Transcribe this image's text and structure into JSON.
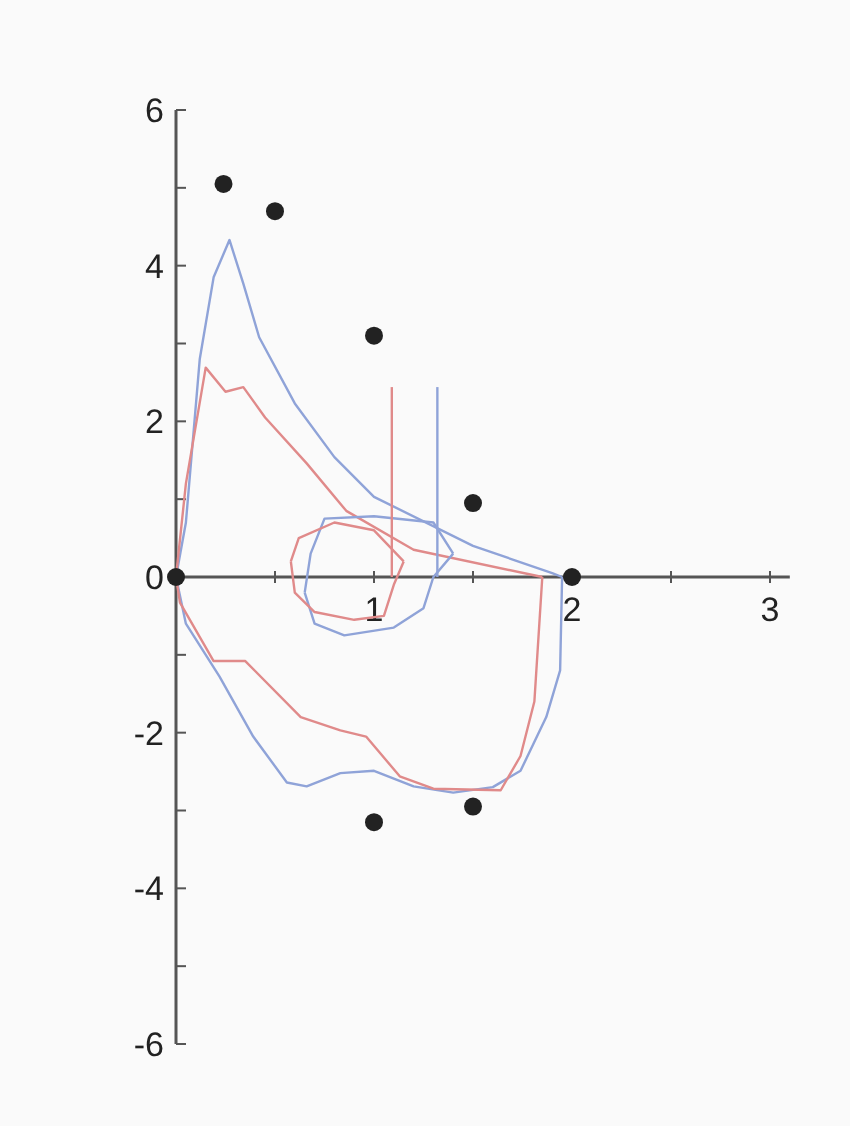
{
  "chart_data": {
    "type": "line",
    "xlim": [
      0,
      3.1
    ],
    "ylim": [
      -6,
      6
    ],
    "xticks": [
      {
        "value": 0.5,
        "label": null
      },
      1,
      {
        "value": 1.5,
        "label": null
      },
      2,
      {
        "value": 2.5,
        "label": null
      },
      3
    ],
    "yticks": [
      -6,
      {
        "value": -5,
        "label": null
      },
      -4,
      {
        "value": -3,
        "label": null
      },
      -2,
      {
        "value": -1,
        "label": null
      },
      0,
      {
        "value": 1,
        "label": null
      },
      2,
      {
        "value": 3,
        "label": null
      },
      4,
      {
        "value": 5,
        "label": null
      },
      6
    ],
    "grid": false,
    "line_style": "solid",
    "series": [
      {
        "color": "#8fa3d8",
        "x": [
          0,
          0.05,
          0.12,
          0.19,
          0.27,
          0.34,
          0.42,
          0.6,
          0.8,
          1.0,
          1.5,
          1.9,
          1.95
        ],
        "values": [
          0,
          0.7,
          2.8,
          3.85,
          4.33,
          3.77,
          3.08,
          2.23,
          1.54,
          1.03,
          0.4,
          0.05,
          0
        ]
      },
      {
        "color": "#8fa3d8",
        "x": [
          0,
          0.05,
          0.22,
          0.39,
          0.56,
          0.66,
          0.83,
          1.0,
          1.2,
          1.4,
          1.6,
          1.74,
          1.87,
          1.94,
          1.95
        ],
        "values": [
          0,
          -0.6,
          -1.28,
          -2.05,
          -2.64,
          -2.69,
          -2.52,
          -2.49,
          -2.69,
          -2.77,
          -2.7,
          -2.49,
          -1.8,
          -1.2,
          0
        ]
      },
      {
        "color": "#e08a8a",
        "x": [
          0,
          0.05,
          0.15,
          0.25,
          0.34,
          0.45,
          0.66,
          0.86,
          1.2,
          1.85
        ],
        "values": [
          0,
          1.2,
          2.69,
          2.38,
          2.44,
          2.05,
          1.46,
          0.85,
          0.35,
          0
        ]
      },
      {
        "color": "#e08a8a",
        "x": [
          0,
          0.02,
          0.19,
          0.35,
          0.63,
          0.83,
          0.96,
          1.13,
          1.3,
          1.64,
          1.74,
          1.81,
          1.85
        ],
        "values": [
          0,
          -0.33,
          -1.08,
          -1.08,
          -1.8,
          -1.97,
          -2.05,
          -2.56,
          -2.72,
          -2.74,
          -2.3,
          -1.6,
          0
        ]
      },
      {
        "color": "#8fa3d8",
        "x": [
          0.65,
          0.68,
          0.75,
          1.0,
          1.3,
          1.4
        ],
        "values": [
          -0.2,
          0.3,
          0.75,
          0.78,
          0.7,
          0.3
        ]
      },
      {
        "color": "#8fa3d8",
        "x": [
          0.65,
          0.7,
          0.85,
          1.1,
          1.25,
          1.3,
          1.4
        ],
        "values": [
          -0.2,
          -0.6,
          -0.75,
          -0.65,
          -0.4,
          0,
          0.3
        ]
      },
      {
        "color": "#e08a8a",
        "x": [
          0.58,
          0.62,
          0.8,
          1.0,
          1.15
        ],
        "values": [
          0.2,
          0.5,
          0.7,
          0.6,
          0.2
        ]
      },
      {
        "color": "#e08a8a",
        "x": [
          0.58,
          0.6,
          0.7,
          0.9,
          1.05,
          1.1,
          1.15
        ],
        "values": [
          0.2,
          -0.2,
          -0.45,
          -0.55,
          -0.5,
          -0.1,
          0.2
        ]
      },
      {
        "color": "#e08a8a",
        "x": [
          1.09,
          1.09
        ],
        "values": [
          0,
          2.44
        ]
      },
      {
        "color": "#8fa3d8",
        "x": [
          1.32,
          1.32
        ],
        "values": [
          0,
          2.44
        ]
      },
      {
        "type": "scatter",
        "color": "#222222",
        "marker": "circle",
        "x": [
          0,
          0.24,
          0.5,
          1,
          1.5,
          2,
          1.5,
          1
        ],
        "values": [
          0,
          5.05,
          4.7,
          3.1,
          0.95,
          0,
          -2.95,
          -3.15
        ]
      }
    ]
  }
}
